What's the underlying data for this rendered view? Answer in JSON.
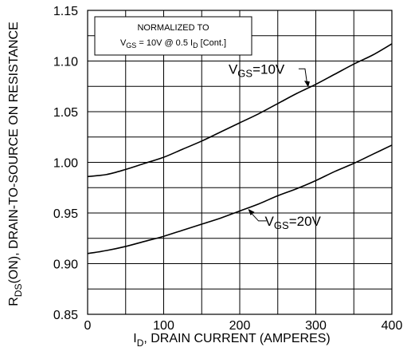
{
  "chart_data": {
    "type": "line",
    "title": "",
    "xlabel": "I_D, DRAIN CURRENT (AMPERES)",
    "xlabel_parts": {
      "main": "I",
      "sub": "D",
      "rest": ", DRAIN CURRENT (AMPERES)"
    },
    "ylabel": "R_DS(ON), DRAIN-TO-SOURCE ON RESISTANCE",
    "ylabel_parts": {
      "main": "R",
      "sub": "DS",
      "rest": "(ON), DRAIN-TO-SOURCE ON RESISTANCE"
    },
    "xlim": [
      0,
      400
    ],
    "ylim": [
      0.85,
      1.15
    ],
    "xticks": [
      0,
      100,
      200,
      300,
      400
    ],
    "xtick_labels": [
      "0",
      "100",
      "200",
      "300",
      "400"
    ],
    "yticks": [
      0.85,
      0.9,
      0.95,
      1.0,
      1.05,
      1.1,
      1.15
    ],
    "ytick_labels": [
      "0.85",
      "0.90",
      "0.95",
      "1.00",
      "1.05",
      "1.10",
      "1.15"
    ],
    "grid": true,
    "x_minor_step": 50,
    "y_minor_step": 0.025,
    "annotation_box": {
      "line1": "NORMALIZED TO",
      "line2_parts": {
        "v": "V",
        "v_sub": "GS",
        "mid": " = 10V  @  0.5  I",
        "i_sub": "D",
        "end": " [Cont.]"
      }
    },
    "series": [
      {
        "name": "V_GS=10V",
        "label_parts": {
          "main": "V",
          "sub": "GS",
          "rest": "=10V"
        },
        "x": [
          0,
          25,
          50,
          75,
          100,
          125,
          150,
          175,
          200,
          225,
          250,
          275,
          300,
          325,
          350,
          375,
          400
        ],
        "y": [
          0.986,
          0.988,
          0.993,
          0.999,
          1.005,
          1.013,
          1.021,
          1.03,
          1.039,
          1.048,
          1.058,
          1.068,
          1.077,
          1.087,
          1.097,
          1.106,
          1.117
        ]
      },
      {
        "name": "V_GS=20V",
        "label_parts": {
          "main": "V",
          "sub": "GS",
          "rest": "=20V"
        },
        "x": [
          0,
          25,
          50,
          75,
          100,
          125,
          150,
          175,
          200,
          225,
          250,
          275,
          300,
          325,
          350,
          375,
          400
        ],
        "y": [
          0.91,
          0.913,
          0.917,
          0.922,
          0.927,
          0.933,
          0.939,
          0.945,
          0.952,
          0.959,
          0.967,
          0.974,
          0.982,
          0.991,
          0.999,
          1.008,
          1.017
        ]
      }
    ],
    "callouts": [
      {
        "series": 0,
        "at_x": 290
      },
      {
        "series": 1,
        "at_x": 210
      }
    ]
  }
}
